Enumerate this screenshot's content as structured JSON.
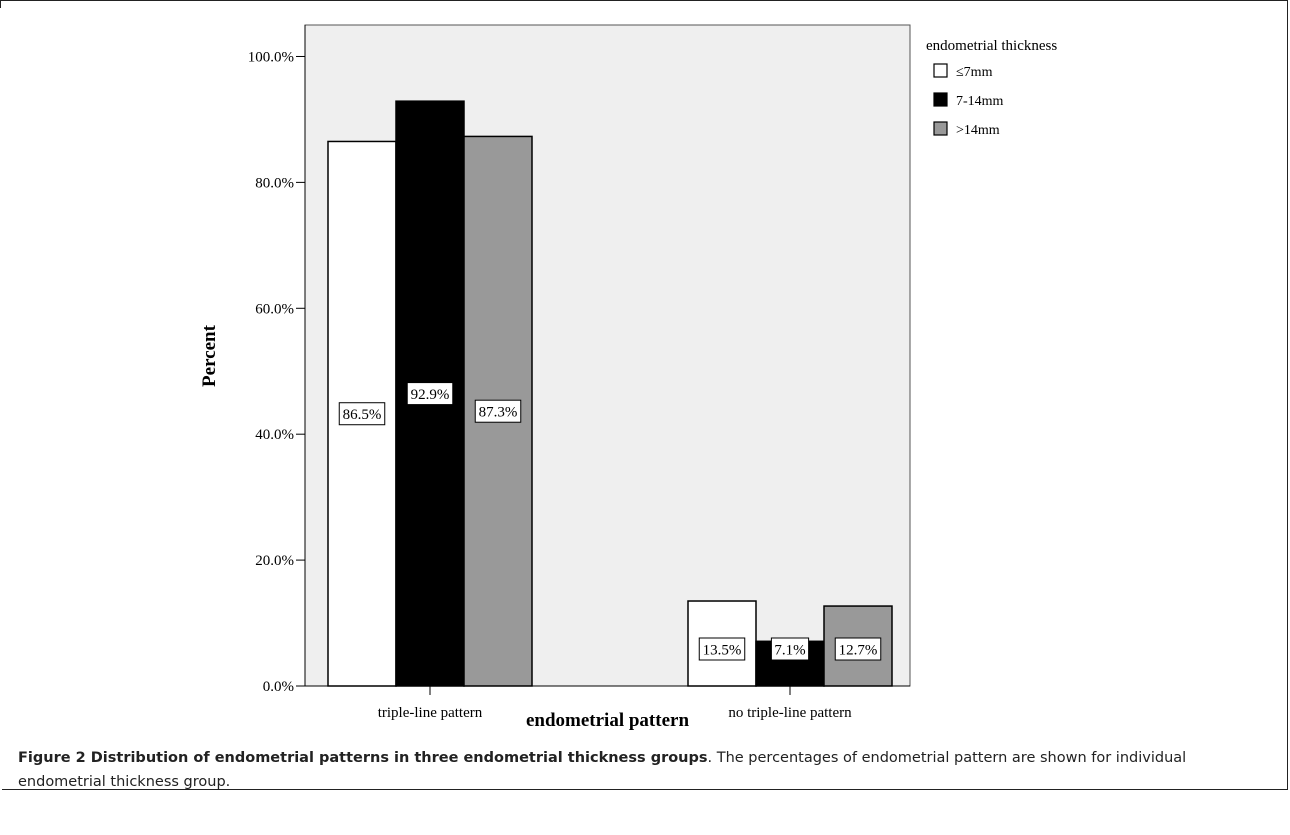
{
  "chart_data": {
    "type": "bar",
    "title": "",
    "xlabel": "endometrial pattern",
    "ylabel": "Percent",
    "categories": [
      "triple-line pattern",
      "no triple-line pattern"
    ],
    "series": [
      {
        "name": "≤7mm",
        "values": [
          86.5,
          13.5
        ],
        "labels": [
          "86.5%",
          "13.5%"
        ],
        "color": "#ffffff"
      },
      {
        "name": "7-14mm",
        "values": [
          92.9,
          7.1
        ],
        "labels": [
          "92.9%",
          "7.1%"
        ],
        "color": "#000000"
      },
      {
        "name": ">14mm",
        "values": [
          87.3,
          12.7
        ],
        "labels": [
          "87.3%",
          "12.7%"
        ],
        "color": "#999999"
      }
    ],
    "ylim": [
      0,
      105
    ],
    "yticks": [
      0,
      20,
      40,
      60,
      80,
      100
    ],
    "ytick_labels": [
      "0.0%",
      "20.0%",
      "40.0%",
      "60.0%",
      "80.0%",
      "100.0%"
    ],
    "legend_title": "endometrial thickness",
    "legend_position": "top-right",
    "plot_background": "#efefef",
    "grid": false
  },
  "caption": {
    "bold": "Figure 2 Distribution of endometrial patterns in three endometrial thickness groups",
    "text": ". The percentages of endometrial pattern are shown for individual endometrial thickness group."
  }
}
